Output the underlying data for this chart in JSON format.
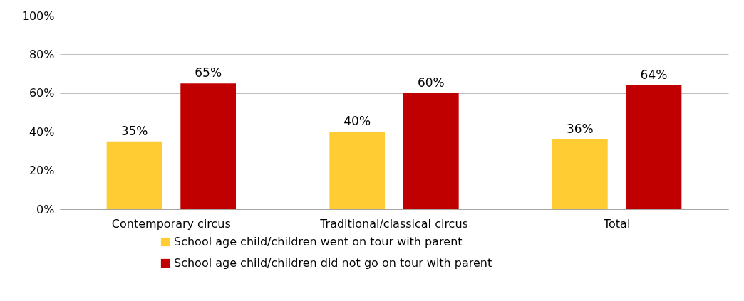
{
  "chart_data": {
    "type": "bar",
    "categories": [
      "Contemporary circus",
      "Traditional/classical circus",
      "Total"
    ],
    "series": [
      {
        "name": "School age child/children went on tour with parent",
        "color": "#ffcc33",
        "values": [
          35,
          40,
          36
        ]
      },
      {
        "name": "School age child/children did not go on tour with parent",
        "color": "#c00000",
        "values": [
          65,
          60,
          64
        ]
      }
    ],
    "ylim": [
      0,
      100
    ],
    "yticks": [
      {
        "value": 0,
        "label": "0%"
      },
      {
        "value": 20,
        "label": "20%"
      },
      {
        "value": 40,
        "label": "40%"
      },
      {
        "value": 60,
        "label": "60%"
      },
      {
        "value": 80,
        "label": "80%"
      },
      {
        "value": 100,
        "label": "100%"
      }
    ],
    "value_labels": [
      [
        "35%",
        "40%",
        "36%"
      ],
      [
        "65%",
        "60%",
        "64%"
      ]
    ],
    "grid": "y",
    "legend": "bottom"
  }
}
